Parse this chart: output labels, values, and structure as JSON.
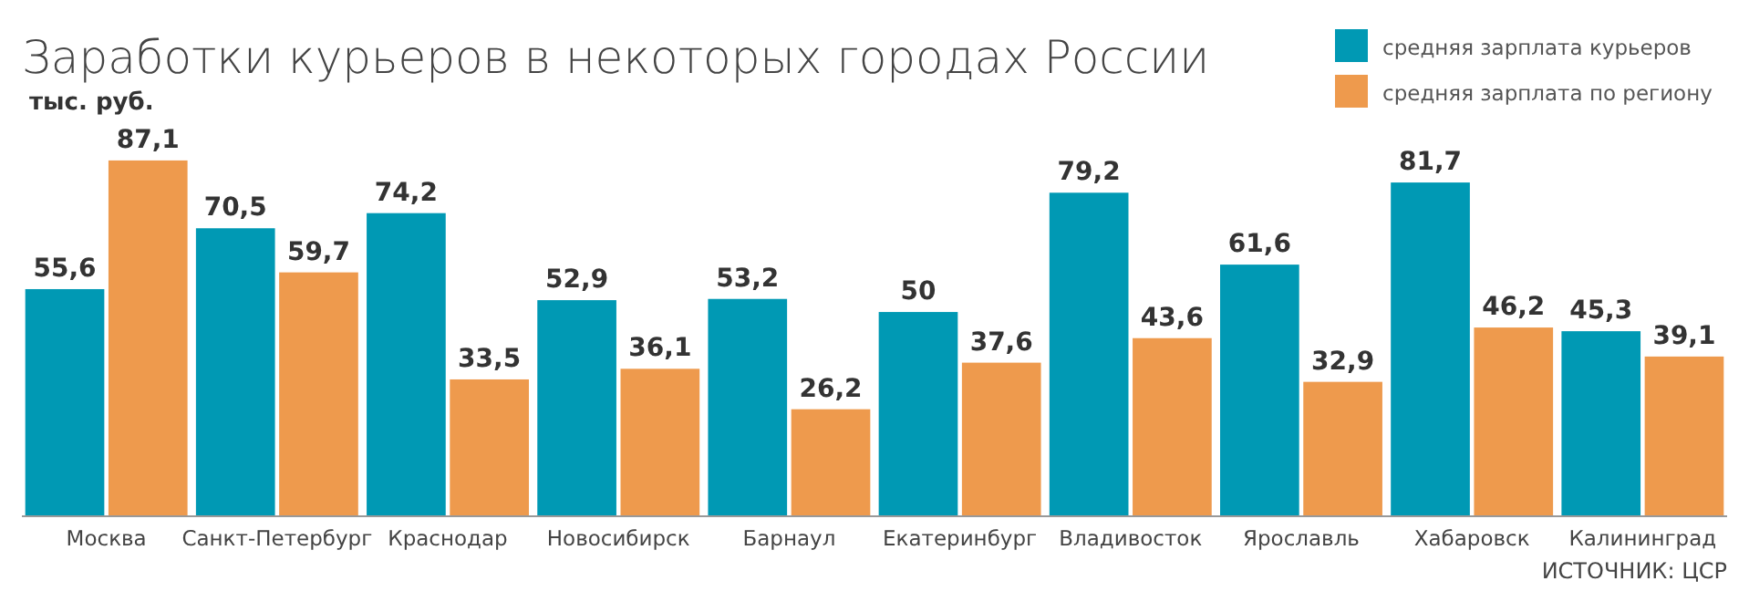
{
  "chart_data": {
    "type": "bar",
    "title": "Заработки курьеров в некоторых городах России",
    "ylabel": "тыс. руб.",
    "categories": [
      "Москва",
      "Санкт-Петербург",
      "Краснодар",
      "Новосибирск",
      "Барнаул",
      "Екатеринбург",
      "Владивосток",
      "Ярославль",
      "Хабаровск",
      "Калининград"
    ],
    "series": [
      {
        "name": "средняя зарплата курьеров",
        "color": "#0099b4",
        "values": [
          55.6,
          70.5,
          74.2,
          52.9,
          53.2,
          50,
          79.2,
          61.6,
          81.7,
          45.3
        ],
        "value_labels": [
          "55,6",
          "70,5",
          "74,2",
          "52,9",
          "53,2",
          "50",
          "79,2",
          "61,6",
          "81,7",
          "45,3"
        ]
      },
      {
        "name": "средняя зарплата по региону",
        "color": "#ee9a4d",
        "values": [
          87.1,
          59.7,
          33.5,
          36.1,
          26.2,
          37.6,
          43.6,
          32.9,
          46.2,
          39.1
        ],
        "value_labels": [
          "87,1",
          "59,7",
          "33,5",
          "36,1",
          "26,2",
          "37,6",
          "43,6",
          "32,9",
          "46,2",
          "39,1"
        ]
      }
    ],
    "legend": "top right",
    "annotations": [
      "ИСТОЧНИК: ЦСР"
    ]
  }
}
